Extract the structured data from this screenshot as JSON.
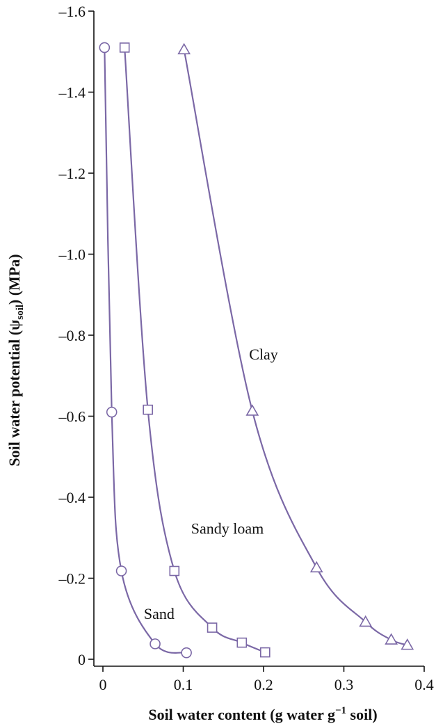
{
  "chart_data": {
    "type": "line",
    "title": "",
    "xlabel": {
      "main": "Soil water content (g water g",
      "sup": "−1",
      "tail": " soil)"
    },
    "ylabel": {
      "main": "Soil water potential (ψ",
      "sub": "soil",
      "tail": ") (MPa)"
    },
    "xlim": [
      -0.01,
      0.4
    ],
    "ylim": [
      0,
      -1.6
    ],
    "x_ticks": [
      0,
      0.1,
      0.2,
      0.3,
      0.4
    ],
    "x_tick_labels": [
      "0",
      "0.1",
      "0.2",
      "0.3",
      "0.4"
    ],
    "y_ticks": [
      0,
      -0.2,
      -0.4,
      -0.6,
      -0.8,
      -1.0,
      -1.2,
      -1.4,
      -1.6
    ],
    "y_tick_labels": [
      "0",
      "–0.2",
      "–0.4",
      "–0.6",
      "–0.8",
      "–1.0",
      "–1.2",
      "–1.4",
      "–1.6"
    ],
    "grid": false,
    "line_color": "#7b68a6",
    "series": [
      {
        "name": "Sand",
        "marker": "circle",
        "points": [
          [
            0.002,
            -1.51
          ],
          [
            0.011,
            -0.61
          ],
          [
            0.023,
            -0.218
          ],
          [
            0.065,
            -0.038
          ],
          [
            0.104,
            -0.016
          ]
        ],
        "label_at": [
          0.07,
          -0.1
        ]
      },
      {
        "name": "Sandy loam",
        "marker": "square",
        "points": [
          [
            0.027,
            -1.51
          ],
          [
            0.056,
            -0.616
          ],
          [
            0.089,
            -0.218
          ],
          [
            0.136,
            -0.078
          ],
          [
            0.173,
            -0.041
          ],
          [
            0.202,
            -0.017
          ]
        ],
        "label_at": [
          0.155,
          -0.31
        ]
      },
      {
        "name": "Clay",
        "marker": "triangle",
        "points": [
          [
            0.101,
            -1.505
          ],
          [
            0.186,
            -0.613
          ],
          [
            0.266,
            -0.226
          ],
          [
            0.327,
            -0.092
          ],
          [
            0.359,
            -0.048
          ],
          [
            0.379,
            -0.035
          ]
        ],
        "label_at": [
          0.2,
          -0.74
        ]
      }
    ]
  }
}
